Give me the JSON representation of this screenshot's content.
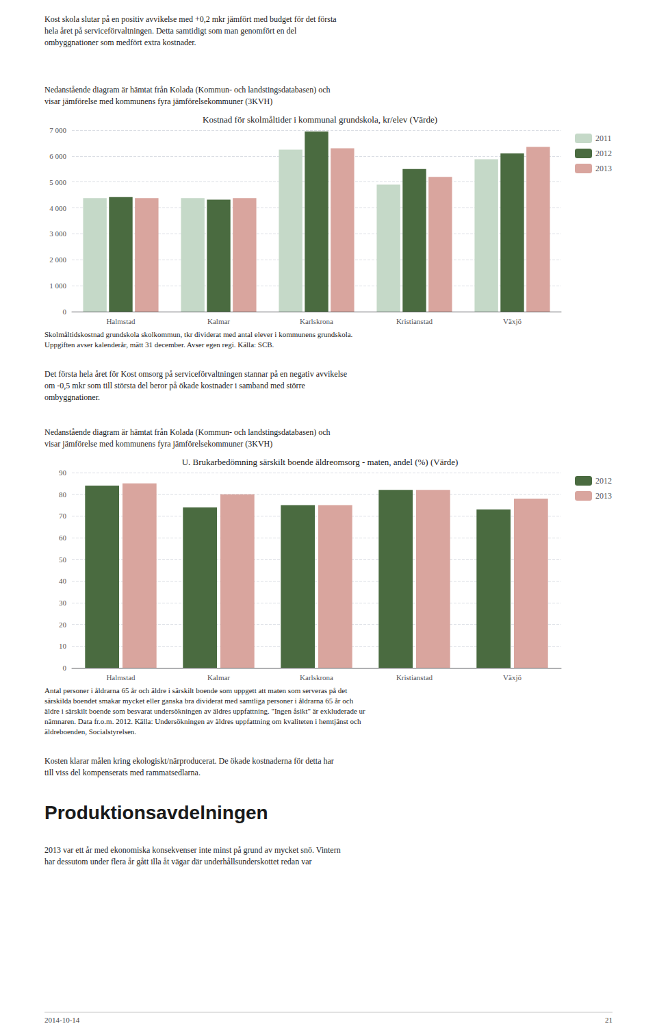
{
  "chart_data": [
    {
      "type": "bar",
      "title": "Kostnad för skolmåltider i kommunal grundskola, kr/elev (Värde)",
      "categories": [
        "Halmstad",
        "Kalmar",
        "Karlskrona",
        "Kristianstad",
        "Växjö"
      ],
      "series": [
        {
          "name": "2011",
          "color": "#c5d9c8",
          "values": [
            4380,
            4380,
            6250,
            4900,
            5880
          ]
        },
        {
          "name": "2012",
          "color": "#4a6b40",
          "values": [
            4420,
            4320,
            6950,
            5500,
            6100
          ]
        },
        {
          "name": "2013",
          "color": "#d9a59e",
          "values": [
            4380,
            4380,
            6300,
            5200,
            6350
          ]
        }
      ],
      "ylim": [
        0,
        7000
      ],
      "yticks": [
        0,
        {
          "value": 1000,
          "label": "1 000"
        },
        {
          "value": 2000,
          "label": "2 000"
        },
        {
          "value": 3000,
          "label": "3 000"
        },
        {
          "value": 4000,
          "label": "4 000"
        },
        {
          "value": 5000,
          "label": "5 000"
        },
        {
          "value": 6000,
          "label": "6 000"
        },
        {
          "value": 7000,
          "label": "7 000"
        }
      ],
      "grid": true,
      "legend": "upper right",
      "annotations": [
        [
          "Kost skola slutar på en positiv avvikelse med +0,2 mkr jämfört med budget för det första",
          "hela året på serviceförvaltningen. Detta samtidigt som man genomfört en del",
          "ombyggnationer som medfört extra kostnader."
        ],
        [
          "Nedanstående diagram är hämtat från Kolada (Kommun- och landstingsdatabasen) och",
          "visar jämförelse med kommunens fyra jämförelsekommuner (3KVH)"
        ],
        [
          "Skolmåltidskostnad grundskola skolkommun, tkr dividerat med antal elever i kommunens grundskola.",
          "Uppgiften avser kalenderår, mätt 31 december. Avser egen regi. Källa: SCB."
        ]
      ]
    },
    {
      "type": "bar",
      "title": "U. Brukarbedömning särskilt boende äldreomsorg - maten, andel (%) (Värde)",
      "categories": [
        "Halmstad",
        "Kalmar",
        "Karlskrona",
        "Kristianstad",
        "Växjö"
      ],
      "series": [
        {
          "name": "2012",
          "color": "#4a6b40",
          "values": [
            84,
            74,
            75,
            82,
            73
          ]
        },
        {
          "name": "2013",
          "color": "#d9a59e",
          "values": [
            85,
            80,
            75,
            82,
            78
          ]
        }
      ],
      "ylim": [
        0,
        90
      ],
      "yticks": [
        0,
        10,
        20,
        30,
        40,
        50,
        60,
        70,
        80,
        90
      ],
      "grid": true,
      "legend": "upper right",
      "annotations": [
        [
          "Det första hela året för Kost omsorg på serviceförvaltningen stannar på en negativ avvikelse",
          "om -0,5 mkr som till största del beror på ökade kostnader i samband med större",
          "ombyggnationer."
        ],
        [
          "Nedanstående diagram är hämtat från Kolada (Kommun- och landstingsdatabasen) och",
          "visar jämförelse med kommunens fyra jämförelsekommuner (3KVH)"
        ],
        [
          "Antal personer i åldrarna 65 år och äldre i särskilt boende som uppgett att maten som serveras på det",
          "särskilda boendet smakar mycket eller ganska bra dividerat med samtliga personer i åldrarna 65 år och",
          "äldre i särskilt boende som besvarat undersökningen av äldres uppfattning. \"Ingen åsikt\" är exkluderade ur",
          "nämnaren. Data fr.o.m. 2012. Källa: Undersökningen av äldres uppfattning om kvaliteten i hemtjänst och",
          "äldreboenden, Socialstyrelsen."
        ],
        [
          "Kosten klarar målen kring ekologiskt/närproducerat. De ökade kostnaderna för detta har",
          "till viss del kompenserats med rammatsedlarna."
        ],
        [
          "Produktionsavdelningen"
        ],
        [
          "2013 var ett år med ekonomiska konsekvenser inte minst på grund av mycket snö. Vintern",
          "har dessutom under flera år gått illa åt vägar där underhållsunderskottet redan var"
        ],
        [
          "2014-10-14"
        ],
        [
          "21"
        ]
      ]
    }
  ]
}
